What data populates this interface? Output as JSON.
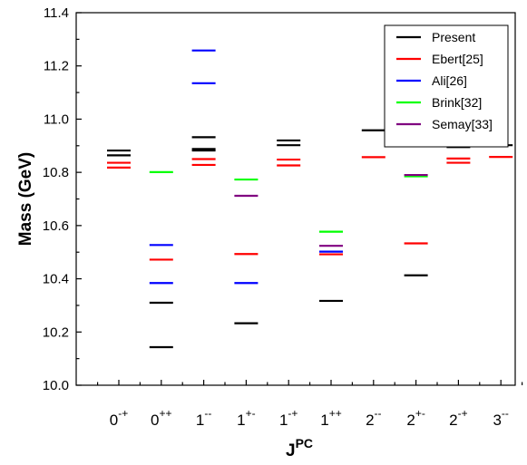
{
  "chart_data": {
    "type": "scatter",
    "marker": "horizontal-dash",
    "xlabel": {
      "base": "J",
      "sup": "PC"
    },
    "ylabel": "Mass (GeV)",
    "ylim": [
      10.0,
      11.4
    ],
    "yticks": [
      "10.0",
      "10.2",
      "10.4",
      "10.6",
      "10.8",
      "11.0",
      "11.2",
      "11.4"
    ],
    "categories": [
      {
        "base": "0",
        "sup": "-+"
      },
      {
        "base": "0",
        "sup": "++"
      },
      {
        "base": "1",
        "sup": "--"
      },
      {
        "base": "1",
        "sup": "+-"
      },
      {
        "base": "1",
        "sup": "-+"
      },
      {
        "base": "1",
        "sup": "++"
      },
      {
        "base": "2",
        "sup": "--"
      },
      {
        "base": "2",
        "sup": "+-"
      },
      {
        "base": "2",
        "sup": "-+"
      },
      {
        "base": "3",
        "sup": "--"
      }
    ],
    "legend_position": "top-right",
    "grid": false,
    "series": [
      {
        "name": "Present",
        "color": "#000000",
        "values": [
          [
            10.864,
            10.882
          ],
          [
            10.143,
            10.31
          ],
          [
            10.882,
            10.888,
            10.932
          ],
          [
            10.233
          ],
          [
            10.902,
            10.92
          ],
          [
            10.317
          ],
          [
            10.958
          ],
          [
            10.413
          ],
          [
            10.895,
            10.912
          ],
          [
            10.902
          ]
        ]
      },
      {
        "name": "Ebert[25]",
        "color": "#ff0000",
        "values": [
          [
            10.818,
            10.836
          ],
          [
            10.472
          ],
          [
            10.828,
            10.85
          ],
          [
            10.493
          ],
          [
            10.826,
            10.848
          ],
          [
            10.492
          ],
          [
            10.857
          ],
          [
            10.533
          ],
          [
            10.836,
            10.852
          ],
          [
            10.858
          ]
        ]
      },
      {
        "name": "Ali[26]",
        "color": "#0000ff",
        "values": [
          [],
          [
            10.384,
            10.527
          ],
          [
            11.135,
            11.258
          ],
          [
            10.384
          ],
          [],
          [
            10.502
          ],
          [],
          [],
          [],
          []
        ]
      },
      {
        "name": "Brink[32]",
        "color": "#00ff00",
        "values": [
          [],
          [
            10.801
          ],
          [],
          [
            10.773
          ],
          [],
          [
            10.577
          ],
          [],
          [
            10.785
          ],
          [],
          []
        ]
      },
      {
        "name": "Semay[33]",
        "color": "#800080",
        "values": [
          [],
          [],
          [],
          [
            10.712
          ],
          [],
          [
            10.524
          ],
          [],
          [
            10.79
          ],
          [],
          []
        ]
      }
    ]
  }
}
